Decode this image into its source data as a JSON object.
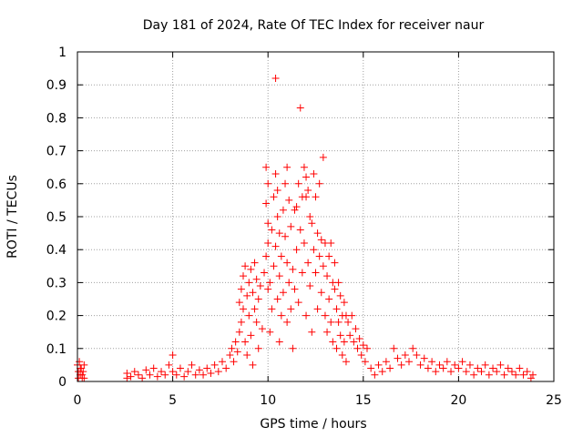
{
  "chart_data": {
    "type": "scatter",
    "title": "Day 181 of 2024, Rate Of TEC Index for receiver naur",
    "xlabel": "GPS time / hours",
    "ylabel": "ROTI / TECUs",
    "xlim": [
      0,
      25
    ],
    "ylim": [
      0,
      1
    ],
    "x_ticks": [
      0,
      5,
      10,
      15,
      20,
      25
    ],
    "y_ticks": [
      0,
      0.1,
      0.2,
      0.3,
      0.4,
      0.5,
      0.6,
      0.7,
      0.8,
      0.9,
      1
    ],
    "x_tick_labels": [
      "0",
      "5",
      "10",
      "15",
      "20",
      "25"
    ],
    "y_tick_labels": [
      "0",
      "0.1",
      "0.2",
      "0.3",
      "0.4",
      "0.5",
      "0.6",
      "0.7",
      "0.8",
      "0.9",
      "1"
    ],
    "grid": true,
    "marker": "+",
    "color": "#ff0000",
    "series": [
      {
        "name": "ROTI",
        "points": [
          [
            0.0,
            0.05
          ],
          [
            0.05,
            0.03
          ],
          [
            0.1,
            0.06
          ],
          [
            0.15,
            0.02
          ],
          [
            0.2,
            0.04
          ],
          [
            0.25,
            0.01
          ],
          [
            0.3,
            0.03
          ],
          [
            0.35,
            0.05
          ],
          [
            0.05,
            0.01
          ],
          [
            0.15,
            0.04
          ],
          [
            0.25,
            0.02
          ],
          [
            0.35,
            0.01
          ],
          [
            2.6,
            0.01
          ],
          [
            2.6,
            0.025
          ],
          [
            2.8,
            0.015
          ],
          [
            3.0,
            0.03
          ],
          [
            3.2,
            0.02
          ],
          [
            3.4,
            0.01
          ],
          [
            3.6,
            0.035
          ],
          [
            3.8,
            0.02
          ],
          [
            4.0,
            0.04
          ],
          [
            4.2,
            0.015
          ],
          [
            4.4,
            0.03
          ],
          [
            4.6,
            0.02
          ],
          [
            4.8,
            0.05
          ],
          [
            5.0,
            0.08
          ],
          [
            5.0,
            0.03
          ],
          [
            5.2,
            0.02
          ],
          [
            5.4,
            0.04
          ],
          [
            5.6,
            0.015
          ],
          [
            5.8,
            0.03
          ],
          [
            6.0,
            0.05
          ],
          [
            6.2,
            0.02
          ],
          [
            6.4,
            0.035
          ],
          [
            6.6,
            0.02
          ],
          [
            6.8,
            0.04
          ],
          [
            7.0,
            0.025
          ],
          [
            7.2,
            0.05
          ],
          [
            7.4,
            0.03
          ],
          [
            7.6,
            0.06
          ],
          [
            7.8,
            0.04
          ],
          [
            8.0,
            0.08
          ],
          [
            8.1,
            0.1
          ],
          [
            8.2,
            0.06
          ],
          [
            8.3,
            0.12
          ],
          [
            8.4,
            0.09
          ],
          [
            8.5,
            0.15
          ],
          [
            8.5,
            0.24
          ],
          [
            8.6,
            0.18
          ],
          [
            8.6,
            0.28
          ],
          [
            8.7,
            0.22
          ],
          [
            8.7,
            0.32
          ],
          [
            8.8,
            0.35
          ],
          [
            8.8,
            0.12
          ],
          [
            8.9,
            0.26
          ],
          [
            8.9,
            0.08
          ],
          [
            9.0,
            0.3
          ],
          [
            9.0,
            0.2
          ],
          [
            9.1,
            0.34
          ],
          [
            9.1,
            0.14
          ],
          [
            9.2,
            0.27
          ],
          [
            9.2,
            0.05
          ],
          [
            9.3,
            0.22
          ],
          [
            9.3,
            0.36
          ],
          [
            9.4,
            0.18
          ],
          [
            9.4,
            0.31
          ],
          [
            9.5,
            0.25
          ],
          [
            9.5,
            0.1
          ],
          [
            9.6,
            0.29
          ],
          [
            9.7,
            0.16
          ],
          [
            9.8,
            0.33
          ],
          [
            9.9,
            0.38
          ],
          [
            9.9,
            0.54
          ],
          [
            9.9,
            0.65
          ],
          [
            10.0,
            0.6
          ],
          [
            10.0,
            0.48
          ],
          [
            10.0,
            0.42
          ],
          [
            10.0,
            0.28
          ],
          [
            10.1,
            0.3
          ],
          [
            10.1,
            0.15
          ],
          [
            10.2,
            0.46
          ],
          [
            10.2,
            0.22
          ],
          [
            10.3,
            0.35
          ],
          [
            10.3,
            0.56
          ],
          [
            10.4,
            0.63
          ],
          [
            10.4,
            0.92
          ],
          [
            10.4,
            0.41
          ],
          [
            10.5,
            0.58
          ],
          [
            10.5,
            0.5
          ],
          [
            10.5,
            0.25
          ],
          [
            10.6,
            0.45
          ],
          [
            10.6,
            0.32
          ],
          [
            10.6,
            0.12
          ],
          [
            10.7,
            0.38
          ],
          [
            10.7,
            0.2
          ],
          [
            10.8,
            0.27
          ],
          [
            10.8,
            0.52
          ],
          [
            10.9,
            0.44
          ],
          [
            10.9,
            0.6
          ],
          [
            11.0,
            0.65
          ],
          [
            11.0,
            0.36
          ],
          [
            11.0,
            0.18
          ],
          [
            11.1,
            0.55
          ],
          [
            11.1,
            0.3
          ],
          [
            11.2,
            0.47
          ],
          [
            11.2,
            0.22
          ],
          [
            11.3,
            0.34
          ],
          [
            11.3,
            0.1
          ],
          [
            11.4,
            0.52
          ],
          [
            11.4,
            0.28
          ],
          [
            11.5,
            0.53
          ],
          [
            11.5,
            0.4
          ],
          [
            11.6,
            0.6
          ],
          [
            11.6,
            0.24
          ],
          [
            11.7,
            0.83
          ],
          [
            11.7,
            0.46
          ],
          [
            11.8,
            0.56
          ],
          [
            11.8,
            0.33
          ],
          [
            11.9,
            0.65
          ],
          [
            11.9,
            0.42
          ],
          [
            12.0,
            0.62
          ],
          [
            12.0,
            0.56
          ],
          [
            12.0,
            0.2
          ],
          [
            12.1,
            0.58
          ],
          [
            12.1,
            0.36
          ],
          [
            12.2,
            0.5
          ],
          [
            12.2,
            0.29
          ],
          [
            12.3,
            0.48
          ],
          [
            12.3,
            0.15
          ],
          [
            12.4,
            0.63
          ],
          [
            12.4,
            0.4
          ],
          [
            12.5,
            0.56
          ],
          [
            12.5,
            0.33
          ],
          [
            12.6,
            0.45
          ],
          [
            12.6,
            0.22
          ],
          [
            12.7,
            0.38
          ],
          [
            12.7,
            0.6
          ],
          [
            12.8,
            0.43
          ],
          [
            12.8,
            0.27
          ],
          [
            12.9,
            0.68
          ],
          [
            12.9,
            0.35
          ],
          [
            13.0,
            0.42
          ],
          [
            13.0,
            0.2
          ],
          [
            13.1,
            0.32
          ],
          [
            13.1,
            0.15
          ],
          [
            13.2,
            0.38
          ],
          [
            13.2,
            0.25
          ],
          [
            13.3,
            0.42
          ],
          [
            13.3,
            0.18
          ],
          [
            13.4,
            0.3
          ],
          [
            13.4,
            0.12
          ],
          [
            13.5,
            0.28
          ],
          [
            13.5,
            0.36
          ],
          [
            13.6,
            0.22
          ],
          [
            13.6,
            0.1
          ],
          [
            13.7,
            0.3
          ],
          [
            13.7,
            0.18
          ],
          [
            13.8,
            0.26
          ],
          [
            13.8,
            0.14
          ],
          [
            13.9,
            0.2
          ],
          [
            13.9,
            0.08
          ],
          [
            14.0,
            0.24
          ],
          [
            14.0,
            0.12
          ],
          [
            14.1,
            0.2
          ],
          [
            14.1,
            0.06
          ],
          [
            14.2,
            0.18
          ],
          [
            14.3,
            0.14
          ],
          [
            14.4,
            0.2
          ],
          [
            14.5,
            0.12
          ],
          [
            14.6,
            0.16
          ],
          [
            14.7,
            0.1
          ],
          [
            14.8,
            0.13
          ],
          [
            14.9,
            0.08
          ],
          [
            15.0,
            0.11
          ],
          [
            15.1,
            0.06
          ],
          [
            15.2,
            0.1
          ],
          [
            15.4,
            0.04
          ],
          [
            15.6,
            0.02
          ],
          [
            15.8,
            0.05
          ],
          [
            16.0,
            0.03
          ],
          [
            16.2,
            0.06
          ],
          [
            16.4,
            0.04
          ],
          [
            16.6,
            0.1
          ],
          [
            16.8,
            0.07
          ],
          [
            17.0,
            0.05
          ],
          [
            17.2,
            0.08
          ],
          [
            17.4,
            0.06
          ],
          [
            17.6,
            0.1
          ],
          [
            17.8,
            0.08
          ],
          [
            18.0,
            0.05
          ],
          [
            18.2,
            0.07
          ],
          [
            18.4,
            0.04
          ],
          [
            18.6,
            0.06
          ],
          [
            18.8,
            0.03
          ],
          [
            19.0,
            0.05
          ],
          [
            19.2,
            0.04
          ],
          [
            19.4,
            0.06
          ],
          [
            19.6,
            0.03
          ],
          [
            19.8,
            0.05
          ],
          [
            20.0,
            0.04
          ],
          [
            20.2,
            0.06
          ],
          [
            20.4,
            0.03
          ],
          [
            20.6,
            0.05
          ],
          [
            20.8,
            0.02
          ],
          [
            21.0,
            0.04
          ],
          [
            21.2,
            0.03
          ],
          [
            21.4,
            0.05
          ],
          [
            21.6,
            0.02
          ],
          [
            21.8,
            0.04
          ],
          [
            22.0,
            0.03
          ],
          [
            22.2,
            0.05
          ],
          [
            22.4,
            0.02
          ],
          [
            22.6,
            0.04
          ],
          [
            22.8,
            0.03
          ],
          [
            23.0,
            0.02
          ],
          [
            23.2,
            0.04
          ],
          [
            23.4,
            0.02
          ],
          [
            23.6,
            0.03
          ],
          [
            23.8,
            0.01
          ],
          [
            23.9,
            0.02
          ]
        ]
      }
    ]
  }
}
